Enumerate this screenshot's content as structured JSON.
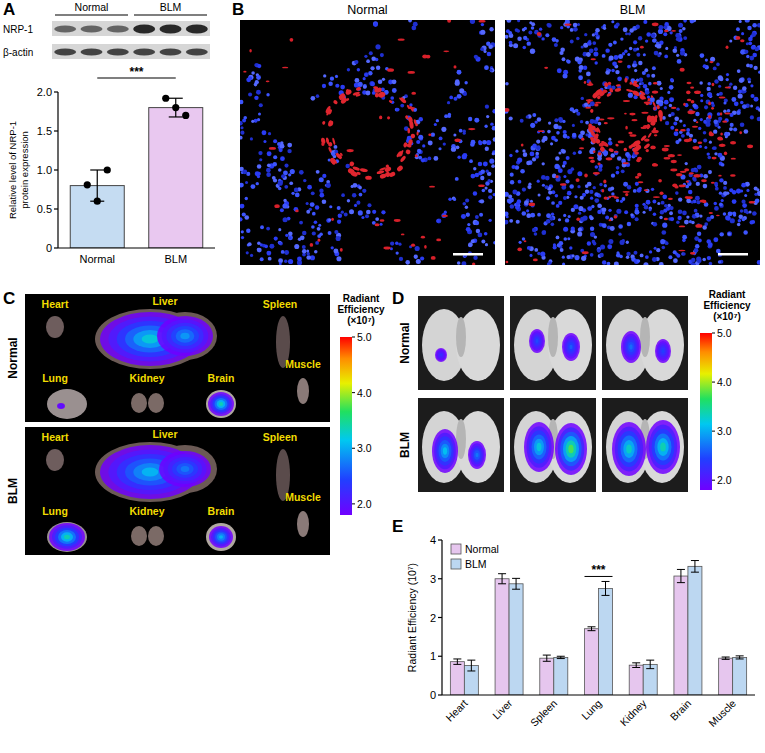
{
  "panel_letters": [
    "A",
    "B",
    "C",
    "D",
    "E"
  ],
  "chart_data": [
    {
      "type": "bar",
      "categories": [
        "Normal",
        "BLM"
      ],
      "values": [
        0.8,
        1.8
      ],
      "errors": [
        0.2,
        0.12
      ],
      "points": [
        [
          0.81,
          1.0,
          0.6
        ],
        [
          1.92,
          1.7,
          1.8
        ]
      ],
      "colors": [
        "#c5dcf2",
        "#e9c8f0"
      ],
      "y_label": "Relative level of NRP-1 protein expression",
      "ylim": [
        0,
        2
      ],
      "yticks": [
        0,
        0.5,
        {
          "value": 1,
          "label": "1.0"
        },
        1.5,
        {
          "value": 2,
          "label": "2.0"
        }
      ],
      "annotations": [
        {
          "text": "***",
          "between": [
            0,
            1
          ]
        }
      ]
    },
    {
      "type": "bar",
      "categories": [
        "Heart",
        "Liver",
        "Spleen",
        "Lung",
        "Kidney",
        "Brain",
        "Muscle"
      ],
      "series": [
        {
          "name": "Normal",
          "color": "#e6c6ee",
          "values": [
            0.86,
            3.0,
            0.95,
            1.71,
            0.77,
            3.07,
            0.95
          ],
          "errors": [
            0.07,
            0.13,
            0.08,
            0.05,
            0.06,
            0.17,
            0.03
          ]
        },
        {
          "name": "BLM",
          "color": "#bcd7f1",
          "values": [
            0.76,
            2.87,
            0.97,
            2.75,
            0.79,
            3.32,
            0.97
          ],
          "errors": [
            0.14,
            0.14,
            0.03,
            0.18,
            0.11,
            0.15,
            0.04
          ]
        }
      ],
      "y_label": "Radiant Efficiency (10⁷)",
      "ylim": [
        0,
        4
      ],
      "yticks": [
        0,
        1,
        2,
        3,
        4
      ],
      "legend": "top-left",
      "annotations": [
        {
          "text": "***",
          "category": 3
        }
      ]
    }
  ],
  "blot": {
    "groups": [
      "Normal",
      "BLM"
    ],
    "rows": [
      "NRP-1",
      "β-actin"
    ]
  },
  "microscopy": {
    "titles": [
      "Normal",
      "BLM"
    ]
  },
  "organ_imaging": {
    "rows": [
      "Normal",
      "BLM"
    ],
    "organs": [
      "Heart",
      "Liver",
      "Spleen",
      "Lung",
      "Kidney",
      "Brain",
      "Muscle"
    ],
    "colorbar": {
      "title": "Radiant Efficiency (×10⁷)",
      "range": [
        1.8,
        5.0
      ],
      "ticks": [
        {
          "value": 2,
          "label": "2.0"
        },
        {
          "value": 3,
          "label": "3.0"
        },
        {
          "value": 4,
          "label": "4.0"
        },
        {
          "value": 5,
          "label": "5.0"
        }
      ]
    }
  },
  "lung_imaging": {
    "rows": [
      "Normal",
      "BLM"
    ],
    "colorbar": {
      "title": "Radiant Efficiency (×10⁷)",
      "range": [
        1.8,
        5.0
      ],
      "ticks": [
        {
          "value": 2,
          "label": "2.0"
        },
        {
          "value": 3,
          "label": "3.0"
        },
        {
          "value": 4,
          "label": "4.0"
        },
        {
          "value": 5,
          "label": "5.0"
        }
      ]
    }
  }
}
